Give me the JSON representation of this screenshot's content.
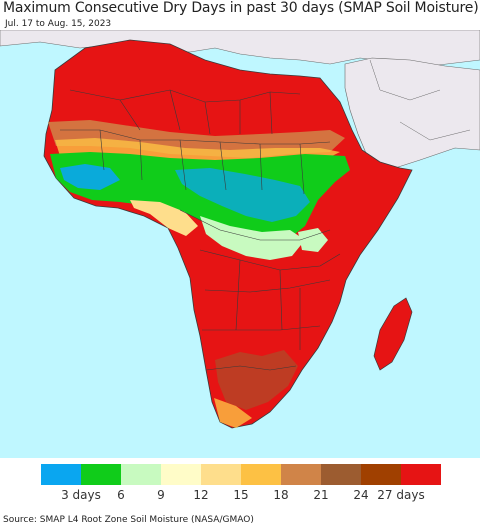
{
  "title": "Maximum Consecutive Dry Days in past 30 days (SMAP Soil Moisture)",
  "subtitle": "Jul. 17 to Aug. 15, 2023",
  "legend": {
    "colors": [
      "#0aa6f0",
      "#10cc1a",
      "#c8fac0",
      "#fffcc8",
      "#fede8c",
      "#fdc144",
      "#d08448",
      "#9c5c30",
      "#a04000",
      "#e61414"
    ],
    "tick_labels": [
      "3 days",
      "6",
      "9",
      "12",
      "15",
      "18",
      "21",
      "24",
      "27 days"
    ]
  },
  "source": "Source: SMAP L4 Root Zone Soil Moisture (NASA/GMAO)",
  "map_colors": {
    "ocean": "#bff7ff",
    "land_nodata": "#ece8ee",
    "border": "#3a3a3a"
  }
}
